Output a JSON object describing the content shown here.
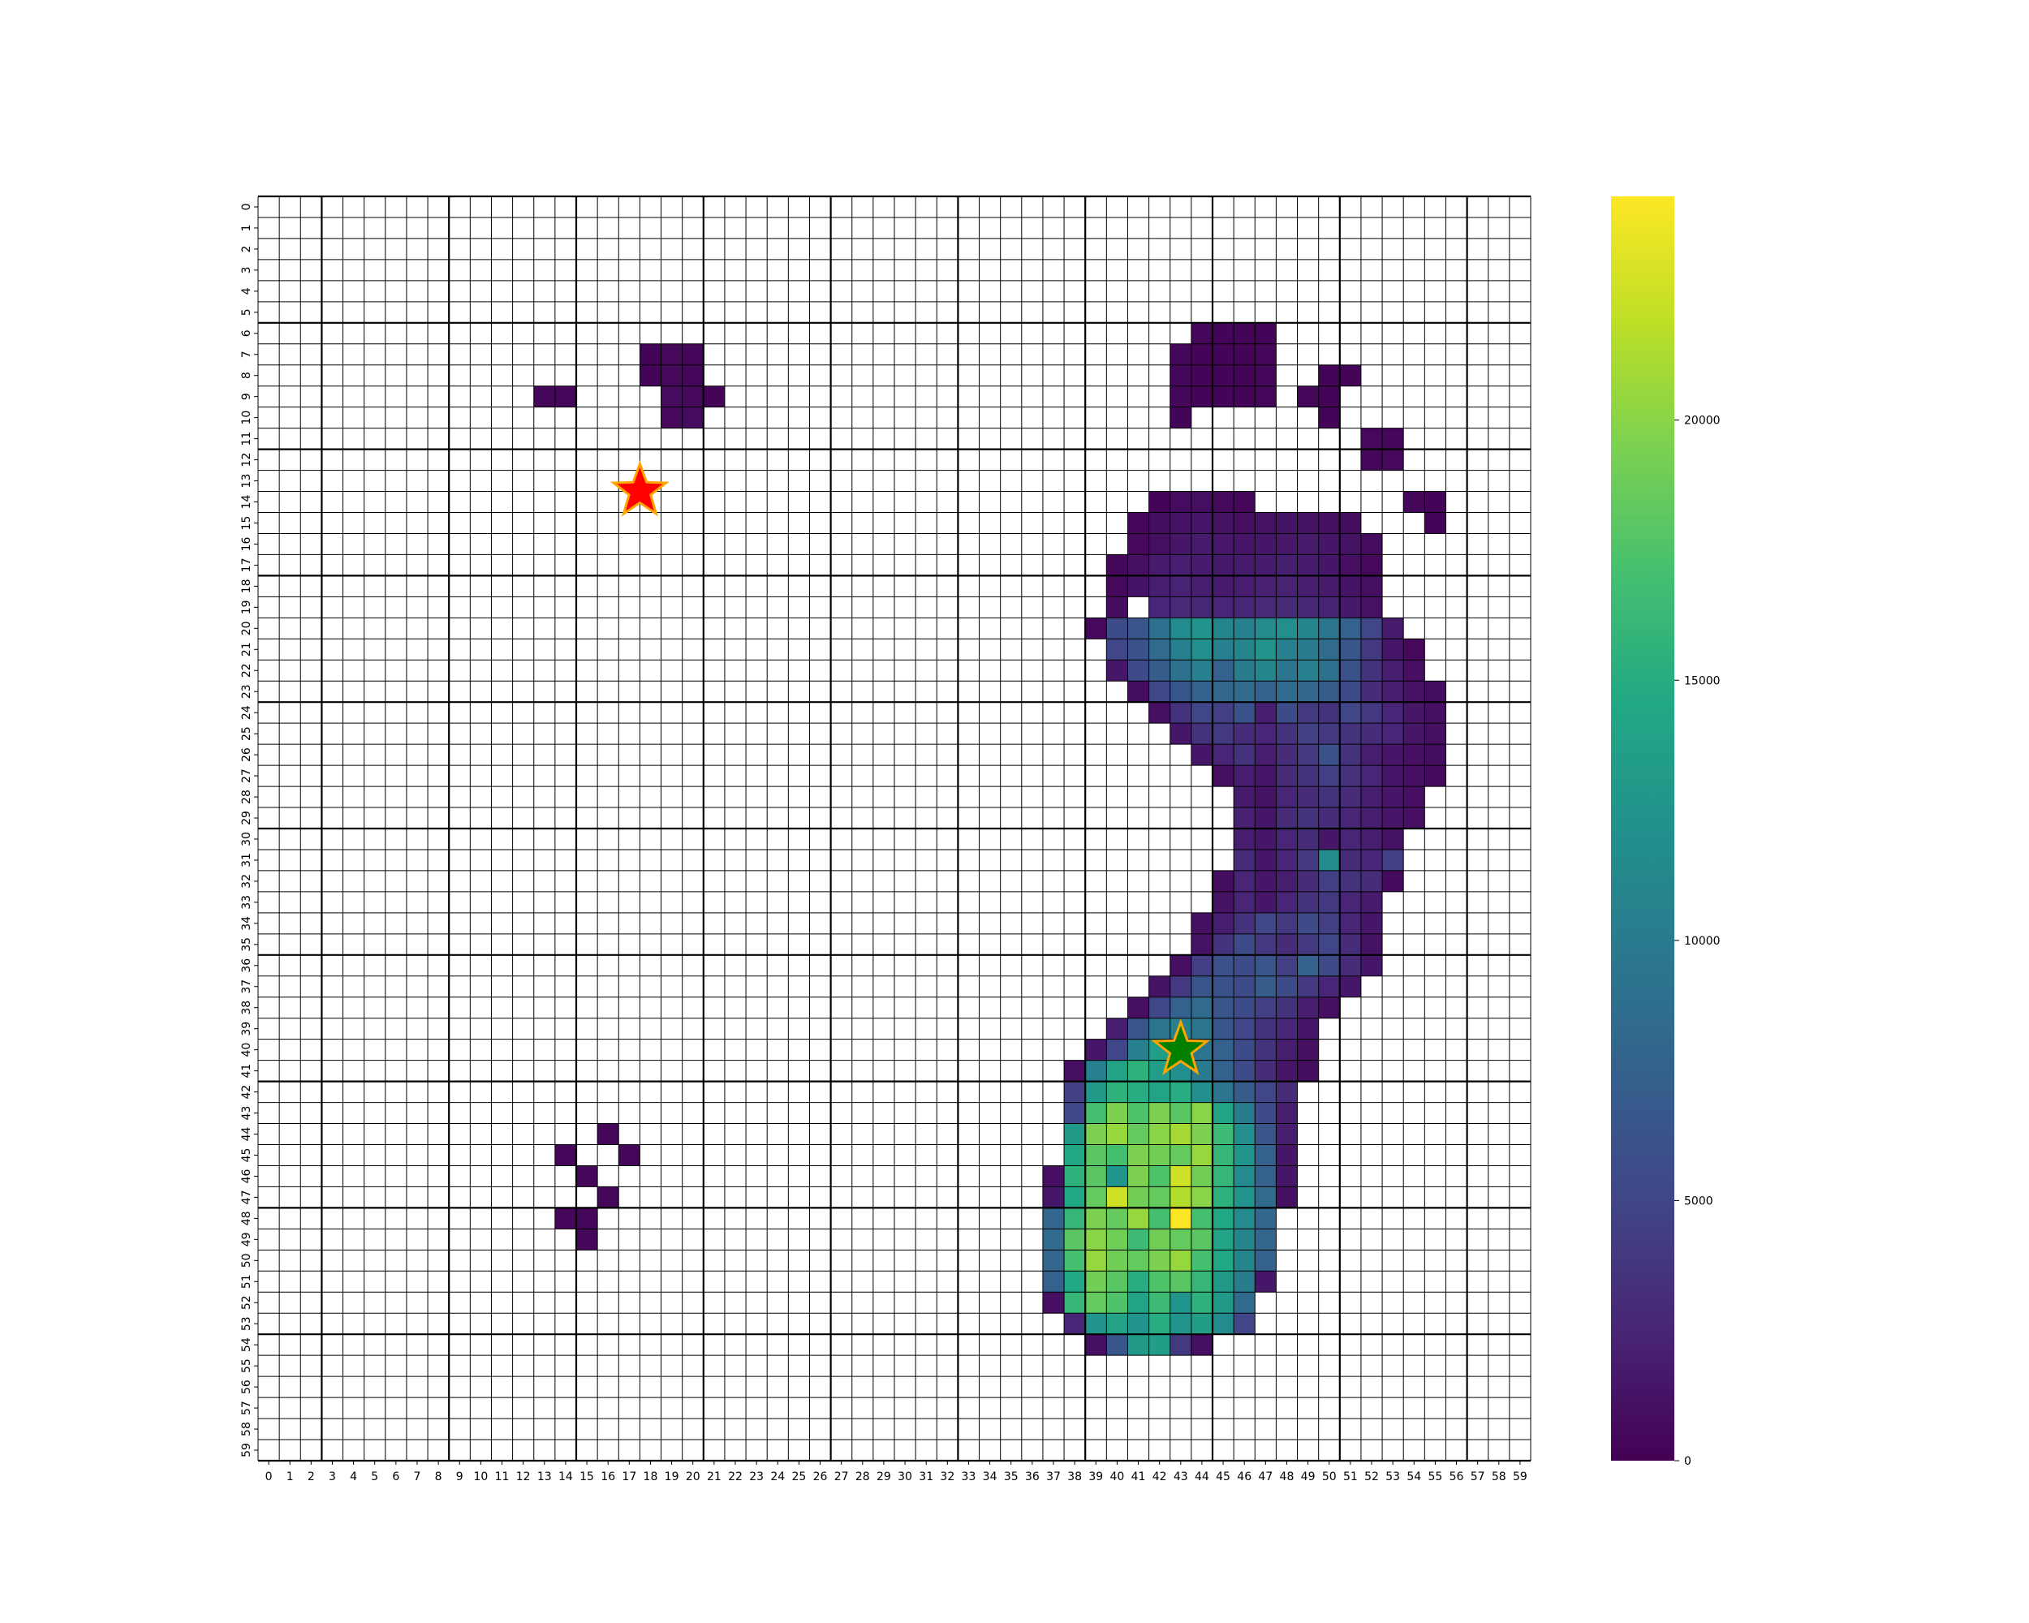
{
  "chart_data": {
    "type": "heatmap",
    "title": "",
    "xlabel": "",
    "ylabel": "",
    "x_ticks": [
      0,
      1,
      2,
      3,
      4,
      5,
      6,
      7,
      8,
      9,
      10,
      11,
      12,
      13,
      14,
      15,
      16,
      17,
      18,
      19,
      20,
      21,
      22,
      23,
      24,
      25,
      26,
      27,
      28,
      29,
      30,
      31,
      32,
      33,
      34,
      35,
      36,
      37,
      38,
      39,
      40,
      41,
      42,
      43,
      44,
      45,
      46,
      47,
      48,
      49,
      50,
      51,
      52,
      53,
      54,
      55,
      56,
      57,
      58,
      59
    ],
    "y_ticks": [
      0,
      1,
      2,
      3,
      4,
      5,
      6,
      7,
      8,
      9,
      10,
      11,
      12,
      13,
      14,
      15,
      16,
      17,
      18,
      19,
      20,
      21,
      22,
      23,
      24,
      25,
      26,
      27,
      28,
      29,
      30,
      31,
      32,
      33,
      34,
      35,
      36,
      37,
      38,
      39,
      40,
      41,
      42,
      43,
      44,
      45,
      46,
      47,
      48,
      49,
      50,
      51,
      52,
      53,
      54,
      55,
      56,
      57,
      58,
      59
    ],
    "grid": true,
    "colormap": "viridis",
    "colorbar": {
      "min": 0,
      "max": 24300,
      "ticks": [
        0,
        5000,
        10000,
        15000,
        20000
      ],
      "tick_labels": [
        "0",
        "5000",
        "10000",
        "15000",
        "20000"
      ]
    },
    "empty_cell_color": "#ffffff",
    "rows": [
      {
        "y": 6,
        "start": 44,
        "values": [
          400,
          300,
          200,
          300
        ]
      },
      {
        "y": 7,
        "start": 18,
        "values": [
          300,
          500,
          400
        ]
      },
      {
        "y": 7,
        "start": 43,
        "values": [
          400,
          300,
          200,
          300,
          400
        ]
      },
      {
        "y": 8,
        "start": 18,
        "values": [
          300,
          500,
          400
        ]
      },
      {
        "y": 8,
        "start": 43,
        "values": [
          400,
          300,
          200,
          300,
          400
        ]
      },
      {
        "y": 8,
        "start": 50,
        "values": [
          300,
          300
        ]
      },
      {
        "y": 9,
        "start": 13,
        "values": [
          400,
          400
        ]
      },
      {
        "y": 9,
        "start": 19,
        "values": [
          700,
          500,
          300
        ]
      },
      {
        "y": 9,
        "start": 43,
        "values": [
          400,
          300,
          300,
          300,
          400
        ]
      },
      {
        "y": 9,
        "start": 49,
        "values": [
          400,
          300
        ]
      },
      {
        "y": 10,
        "start": 19,
        "values": [
          500,
          700
        ]
      },
      {
        "y": 10,
        "start": 43,
        "values": [
          300
        ]
      },
      {
        "y": 10,
        "start": 50,
        "values": [
          300
        ]
      },
      {
        "y": 11,
        "start": 52,
        "values": [
          500,
          400
        ]
      },
      {
        "y": 12,
        "start": 52,
        "values": [
          400,
          500
        ]
      },
      {
        "y": 14,
        "start": 42,
        "values": [
          300,
          700,
          900,
          600,
          400
        ]
      },
      {
        "y": 14,
        "start": 54,
        "values": [
          400,
          300
        ]
      },
      {
        "y": 15,
        "start": 41,
        "values": [
          400,
          800,
          1200,
          1400,
          1200,
          900,
          1100,
          1300,
          1200,
          1000,
          800
        ]
      },
      {
        "y": 15,
        "start": 55,
        "values": [
          300
        ]
      },
      {
        "y": 16,
        "start": 41,
        "values": [
          500,
          900,
          1500,
          1800,
          1600,
          1400,
          1500,
          1600,
          1800,
          1500,
          1200,
          700
        ]
      },
      {
        "y": 17,
        "start": 40,
        "values": [
          400,
          1000,
          1800,
          2100,
          1900,
          1700,
          1800,
          1900,
          2100,
          1900,
          1500,
          1000,
          500
        ]
      },
      {
        "y": 18,
        "start": 40,
        "values": [
          500,
          1300,
          2000,
          2300,
          2100,
          1900,
          2000,
          2200,
          2300,
          2100,
          1800,
          1300,
          900
        ]
      },
      {
        "y": 19,
        "start": 40,
        "values": [
          800
        ],
        "note": ""
      },
      {
        "y": 19,
        "start": 42,
        "values": [
          2500,
          2900,
          2700,
          2500,
          2600,
          2800,
          2900,
          2700,
          2300,
          1700,
          1100
        ]
      },
      {
        "y": 20,
        "start": 39,
        "values": [
          500,
          5500,
          6500,
          9000,
          11500,
          12500,
          11000,
          10500,
          11500,
          12000,
          11000,
          9500,
          7500,
          5000,
          1800
        ]
      },
      {
        "y": 21,
        "start": 40,
        "values": [
          5000,
          6000,
          8500,
          10500,
          12000,
          10500,
          11000,
          12500,
          10500,
          10000,
          8500,
          6500,
          4000,
          1500,
          500
        ]
      },
      {
        "y": 22,
        "start": 40,
        "values": [
          1500,
          5500,
          7000,
          9000,
          10500,
          7500,
          10000,
          11000,
          9500,
          10500,
          9000,
          6000,
          3500,
          2000,
          1000
        ]
      },
      {
        "y": 23,
        "start": 41,
        "values": [
          800,
          5000,
          6500,
          7500,
          8000,
          8500,
          7500,
          8500,
          8000,
          7000,
          5500,
          3000,
          2000,
          1200,
          800
        ]
      },
      {
        "y": 24,
        "start": 42,
        "values": [
          1000,
          3500,
          5000,
          4500,
          6000,
          2000,
          5500,
          4000,
          3500,
          5000,
          4000,
          2500,
          1500,
          1000
        ]
      },
      {
        "y": 25,
        "start": 43,
        "values": [
          1500,
          3500,
          4000,
          3000,
          2500,
          3500,
          4500,
          4000,
          3500,
          3000,
          2500,
          1500,
          1000
        ]
      },
      {
        "y": 26,
        "start": 44,
        "values": [
          1500,
          2500,
          3500,
          2000,
          3000,
          4000,
          6000,
          3500,
          2000,
          1500,
          1000,
          800
        ]
      },
      {
        "y": 27,
        "start": 45,
        "values": [
          1000,
          2000,
          1500,
          3000,
          3500,
          4500,
          3500,
          2500,
          1500,
          1000,
          600
        ]
      },
      {
        "y": 28,
        "start": 46,
        "values": [
          1800,
          1200,
          2500,
          3000,
          3500,
          3000,
          2000,
          1500,
          1000
        ]
      },
      {
        "y": 29,
        "start": 46,
        "values": [
          2200,
          1500,
          3000,
          3500,
          3000,
          2500,
          2000,
          1500,
          1000
        ]
      },
      {
        "y": 30,
        "start": 46,
        "values": [
          2000,
          1500,
          2500,
          3000,
          1500,
          2500,
          2000,
          1200
        ]
      },
      {
        "y": 31,
        "start": 46,
        "values": [
          3000,
          1500,
          2500,
          4000,
          11500,
          3000,
          2500,
          4500
        ]
      },
      {
        "y": 32,
        "start": 45,
        "values": [
          800,
          2500,
          1500,
          2000,
          3000,
          4500,
          3500,
          3000
        ]
      },
      {
        "y": 32,
        "start": 53,
        "values": [
          600
        ]
      },
      {
        "y": 33,
        "start": 45,
        "values": [
          1200,
          2500,
          1500,
          2500,
          3500,
          4000,
          2500,
          1800
        ]
      },
      {
        "y": 34,
        "start": 44,
        "values": [
          1000,
          2000,
          3500,
          5000,
          4000,
          5500,
          4500,
          2500,
          1500
        ]
      },
      {
        "y": 35,
        "start": 44,
        "values": [
          1200,
          3500,
          5500,
          4000,
          3000,
          4000,
          5000,
          3000,
          1200
        ]
      },
      {
        "y": 36,
        "start": 43,
        "values": [
          1000,
          4500,
          6000,
          5500,
          6500,
          4500,
          7500,
          5500,
          3000,
          1500
        ]
      },
      {
        "y": 37,
        "start": 42,
        "values": [
          1200,
          4000,
          6500,
          6000,
          5500,
          7000,
          5500,
          4000,
          2500,
          1500
        ]
      },
      {
        "y": 38,
        "start": 41,
        "values": [
          1000,
          5000,
          7500,
          8500,
          6500,
          5500,
          4500,
          3500,
          2000,
          1000
        ]
      },
      {
        "y": 39,
        "start": 40,
        "values": [
          2000,
          6500,
          9500,
          10500,
          9500,
          6500,
          5000,
          3500,
          2500,
          1500
        ]
      },
      {
        "y": 40,
        "start": 39,
        "values": [
          1500,
          5000,
          10500,
          13500,
          11500,
          9500,
          7500,
          5500,
          3500,
          2000,
          1000
        ]
      },
      {
        "y": 41,
        "start": 38,
        "values": [
          1000,
          10500,
          14000,
          15500,
          13500,
          12000,
          10000,
          7500,
          5500,
          3000,
          1500,
          800
        ]
      },
      {
        "y": 42,
        "start": 38,
        "values": [
          4500,
          13000,
          15500,
          15000,
          14000,
          15000,
          12000,
          9500,
          7000,
          5000,
          3000
        ]
      },
      {
        "y": 43,
        "start": 38,
        "values": [
          5000,
          17000,
          19500,
          17500,
          19500,
          18000,
          20000,
          14000,
          10000,
          5500,
          2000
        ]
      },
      {
        "y": 44,
        "start": 38,
        "values": [
          13000,
          19500,
          20500,
          18500,
          20000,
          21000,
          19500,
          16500,
          12000,
          6500,
          2000
        ]
      },
      {
        "y": 45,
        "start": 38,
        "values": [
          14500,
          18000,
          17000,
          19500,
          19000,
          18500,
          20500,
          16000,
          12500,
          7500,
          1500
        ]
      },
      {
        "y": 46,
        "start": 37,
        "values": [
          1000,
          15500,
          18000,
          12500,
          19500,
          17500,
          22500,
          19000,
          16000,
          11500,
          7500,
          1500
        ]
      },
      {
        "y": 47,
        "start": 37,
        "values": [
          1500,
          14500,
          18500,
          22500,
          19000,
          18500,
          21500,
          20000,
          15500,
          12500,
          8500,
          1000
        ]
      },
      {
        "y": 48,
        "start": 37,
        "values": [
          8000,
          16000,
          19500,
          18500,
          20500,
          17000,
          24300,
          17000,
          14500,
          11500,
          8000
        ]
      },
      {
        "y": 49,
        "start": 37,
        "values": [
          8500,
          18000,
          20000,
          19000,
          16500,
          19000,
          18500,
          18000,
          14000,
          11000,
          8000
        ]
      },
      {
        "y": 50,
        "start": 37,
        "values": [
          8000,
          17000,
          20500,
          19000,
          18500,
          19500,
          20500,
          17000,
          14500,
          11000,
          7500
        ]
      },
      {
        "y": 51,
        "start": 37,
        "values": [
          7500,
          14500,
          19000,
          18000,
          15000,
          17500,
          18000,
          16000,
          13000,
          10000,
          1500
        ]
      },
      {
        "y": 52,
        "start": 37,
        "values": [
          1000,
          16000,
          18500,
          17500,
          14000,
          16500,
          12500,
          15500,
          13000,
          8500
        ]
      },
      {
        "y": 53,
        "start": 38,
        "values": [
          2500,
          12500,
          14000,
          12500,
          15000,
          12500,
          13500,
          11500,
          5000
        ]
      },
      {
        "y": 54,
        "start": 39,
        "values": [
          1000,
          6500,
          13000,
          13500,
          4000,
          1000
        ]
      },
      {
        "y": 44,
        "start": 16,
        "values": [
          400
        ]
      },
      {
        "y": 45,
        "start": 14,
        "values": [
          400
        ]
      },
      {
        "y": 45,
        "start": 17,
        "values": [
          400
        ]
      },
      {
        "y": 46,
        "start": 15,
        "values": [
          400
        ]
      },
      {
        "y": 47,
        "start": 16,
        "values": [
          400
        ]
      },
      {
        "y": 48,
        "start": 14,
        "values": [
          400,
          400
        ]
      },
      {
        "y": 49,
        "start": 15,
        "values": [
          400
        ]
      }
    ],
    "markers": [
      {
        "name": "start",
        "shape": "star",
        "x": 17.5,
        "y": 13.5,
        "fill": "#ff0000",
        "edge": "#ffa500"
      },
      {
        "name": "end",
        "shape": "star",
        "x": 43.0,
        "y": 40.0,
        "fill": "#008000",
        "edge": "#ffa500"
      }
    ]
  }
}
